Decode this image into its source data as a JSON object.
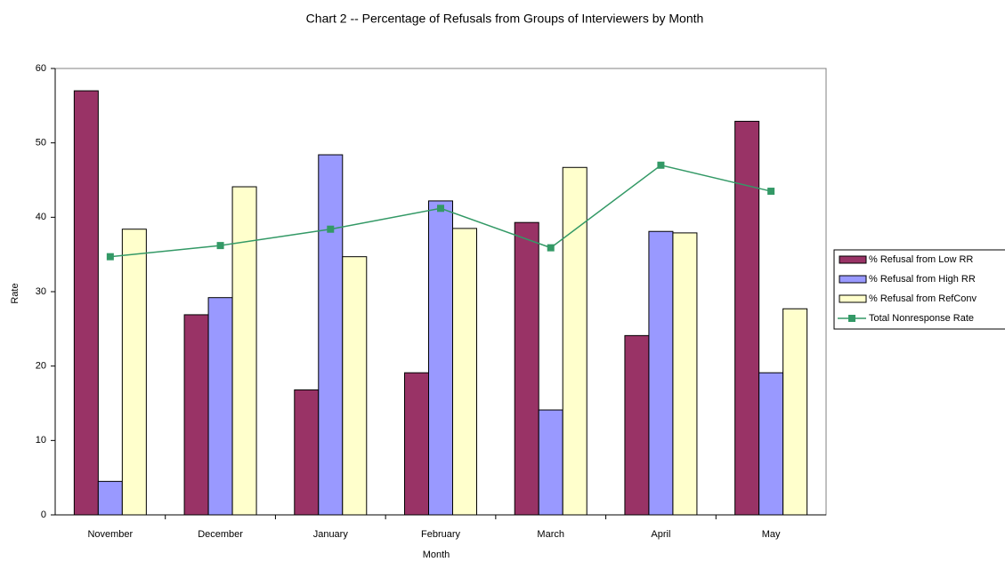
{
  "chart_data": {
    "type": "bar",
    "title": "Chart 2 -- Percentage of Refusals from Groups of Interviewers by Month",
    "x_label": "Month",
    "y_label": "Rate",
    "categories": [
      "November",
      "December",
      "January",
      "February",
      "March",
      "April",
      "May"
    ],
    "series": [
      {
        "name": "% Refusal from Low RR",
        "type": "bar",
        "color": "#993366",
        "values": [
          57.0,
          26.9,
          16.8,
          19.1,
          39.3,
          24.1,
          52.9
        ]
      },
      {
        "name": "% Refusal from High RR",
        "type": "bar",
        "color": "#9999ff",
        "values": [
          4.5,
          29.2,
          48.4,
          42.2,
          14.1,
          38.1,
          19.1
        ]
      },
      {
        "name": "% Refusal from RefConv",
        "type": "bar",
        "color": "#ffffcc",
        "values": [
          38.4,
          44.1,
          34.7,
          38.5,
          46.7,
          37.9,
          27.7
        ]
      },
      {
        "name": "Total Nonresponse Rate",
        "type": "line",
        "color": "#339966",
        "values": [
          34.7,
          36.2,
          38.4,
          41.2,
          35.9,
          47.0,
          43.5
        ]
      }
    ],
    "ylim": [
      0,
      60
    ],
    "yticks": [
      0,
      10,
      20,
      30,
      40,
      50,
      60
    ],
    "grid": false,
    "legend": "right"
  }
}
